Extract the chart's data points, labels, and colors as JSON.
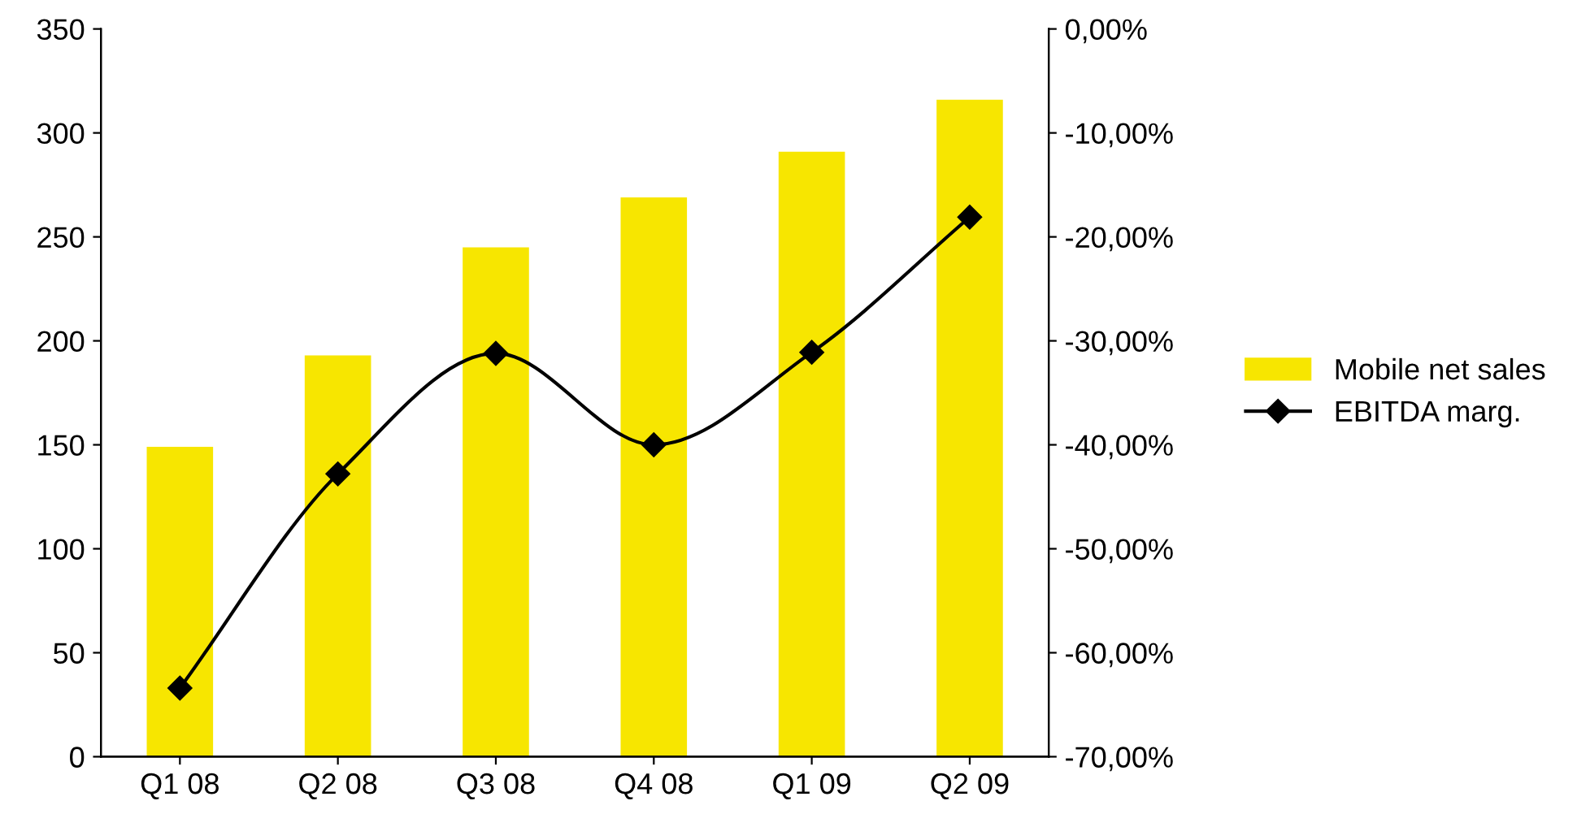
{
  "chart_data": {
    "type": "bar",
    "categories": [
      "Q1 08",
      "Q2 08",
      "Q3 08",
      "Q4 08",
      "Q1 09",
      "Q2 09"
    ],
    "series": [
      {
        "name": "Mobile net sales",
        "color": "#f7e600",
        "values": [
          149,
          193,
          245,
          269,
          291,
          316
        ]
      },
      {
        "name": "EBITDA marg.",
        "type": "line",
        "axis": "y2",
        "color": "#000000",
        "marker": "diamond",
        "line_style": "solid",
        "values": [
          -63.4,
          -42.8,
          -31.2,
          -40.0,
          -31.1,
          -18.1
        ]
      }
    ],
    "ylim": [
      0,
      350
    ],
    "yticks": [
      0,
      50,
      100,
      150,
      200,
      250,
      300,
      350
    ],
    "y2lim": [
      -70,
      0
    ],
    "y2ticks": [
      {
        "value": -70,
        "label": "-70,00%"
      },
      {
        "value": -60,
        "label": "-60,00%"
      },
      {
        "value": -50,
        "label": "-50,00%"
      },
      {
        "value": -40,
        "label": "-40,00%"
      },
      {
        "value": -30,
        "label": "-30,00%"
      },
      {
        "value": -20,
        "label": "-20,00%"
      },
      {
        "value": -10,
        "label": "-10,00%"
      },
      {
        "value": 0,
        "label": "0,00%"
      }
    ],
    "grid": false,
    "legend": "right"
  }
}
